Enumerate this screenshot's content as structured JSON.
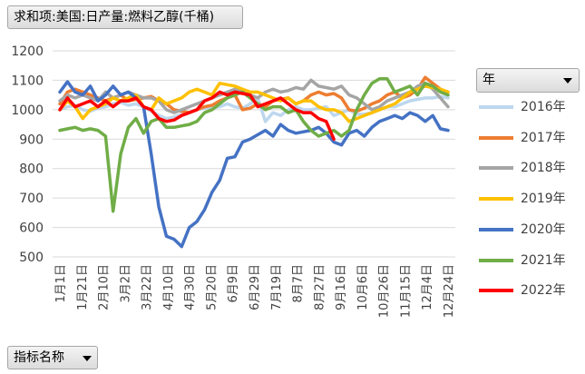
{
  "measure_button": {
    "label": "求和项:美国:日产量:燃料乙醇(千桶)"
  },
  "category_button": {
    "label": "指标名称"
  },
  "legend_header": {
    "label": "年"
  },
  "chart_data": {
    "type": "line",
    "y_ticks": [
      500,
      600,
      700,
      800,
      900,
      1000,
      1100,
      1200
    ],
    "ylim": [
      500,
      1200
    ],
    "x_tick_labels": [
      "1月1日",
      "1月21日",
      "2月10日",
      "3月2日",
      "3月22日",
      "4月10日",
      "4月30日",
      "5月20日",
      "6月9日",
      "6月29日",
      "7月19日",
      "8月7日",
      "8月27日",
      "9月16日",
      "10月6日",
      "10月26日",
      "11月15日",
      "12月4日",
      "12月24日"
    ],
    "n_points": 52,
    "grid": true,
    "legend_position": "right",
    "series": [
      {
        "name": "2016年",
        "color": "#bdd7ee",
        "values": [
          1000,
          1010,
          1015,
          1000,
          995,
          1005,
          1010,
          1020,
          1025,
          1015,
          1020,
          1010,
          995,
          980,
          970,
          975,
          985,
          990,
          1000,
          1005,
          1005,
          1010,
          1020,
          1010,
          1005,
          1020,
          1040,
          960,
          990,
          980,
          1000,
          1010,
          1000,
          1000,
          1005,
          1010,
          980,
          990,
          1000,
          985,
          985,
          990,
          1000,
          1010,
          1010,
          1020,
          1030,
          1035,
          1040,
          1040,
          1045,
          1040
        ]
      },
      {
        "name": "2017年",
        "color": "#ed7d31",
        "values": [
          1020,
          1060,
          1070,
          1060,
          1050,
          1040,
          1030,
          1040,
          1050,
          1030,
          1035,
          1040,
          1045,
          1030,
          1020,
          1000,
          995,
          990,
          1000,
          1010,
          1015,
          1030,
          1040,
          1050,
          1000,
          1005,
          1020,
          1010,
          1030,
          1035,
          1040,
          1020,
          1030,
          1050,
          1060,
          1050,
          1055,
          1040,
          1000,
          995,
          1005,
          1020,
          1030,
          1050,
          1060,
          1040,
          1050,
          1070,
          1110,
          1090,
          1070,
          1060
        ]
      },
      {
        "name": "2018年",
        "color": "#a5a5a5",
        "values": [
          1030,
          1050,
          1040,
          1050,
          1040,
          1030,
          1060,
          1040,
          1050,
          1060,
          1050,
          1040,
          1040,
          1030,
          1000,
          990,
          1000,
          1010,
          1020,
          1030,
          1040,
          1050,
          1060,
          1070,
          1060,
          1050,
          1040,
          1060,
          1070,
          1060,
          1065,
          1075,
          1070,
          1100,
          1080,
          1075,
          1070,
          1080,
          1050,
          1040,
          1020,
          1000,
          1010,
          1030,
          1040,
          1050,
          1060,
          1080,
          1090,
          1070,
          1040,
          1010
        ]
      },
      {
        "name": "2019年",
        "color": "#ffc000",
        "values": [
          1000,
          1030,
          1010,
          970,
          1000,
          1010,
          1020,
          1040,
          1030,
          1040,
          1050,
          1010,
          1000,
          1040,
          1020,
          1030,
          1040,
          1060,
          1070,
          1060,
          1050,
          1090,
          1085,
          1080,
          1070,
          1060,
          1060,
          1050,
          1040,
          1030,
          1040,
          1020,
          1030,
          1030,
          1010,
          1000,
          1000,
          990,
          960,
          970,
          980,
          990,
          1000,
          1010,
          1020,
          1040,
          1060,
          1070,
          1080,
          1075,
          1070,
          1060
        ]
      },
      {
        "name": "2020年",
        "color": "#4472c4",
        "values": [
          1060,
          1095,
          1060,
          1050,
          1080,
          1030,
          1050,
          1080,
          1050,
          1060,
          1040,
          1010,
          850,
          670,
          570,
          560,
          535,
          600,
          620,
          660,
          720,
          760,
          835,
          840,
          890,
          900,
          915,
          930,
          910,
          950,
          930,
          920,
          925,
          930,
          940,
          920,
          890,
          880,
          920,
          930,
          910,
          940,
          960,
          970,
          980,
          970,
          990,
          980,
          960,
          980,
          935,
          930
        ]
      },
      {
        "name": "2021年",
        "color": "#70ad47",
        "values": [
          930,
          935,
          940,
          930,
          935,
          930,
          910,
          655,
          850,
          940,
          970,
          920,
          960,
          970,
          940,
          940,
          945,
          950,
          960,
          990,
          1000,
          1020,
          1040,
          1050,
          1060,
          1040,
          1020,
          1000,
          1010,
          1010,
          990,
          1000,
          960,
          930,
          910,
          920,
          930,
          910,
          930,
          1000,
          1050,
          1090,
          1105,
          1105,
          1060,
          1070,
          1080,
          1050,
          1090,
          1080,
          1060,
          1050
        ]
      },
      {
        "name": "2022年",
        "color": "#ff0000",
        "values": [
          1000,
          1040,
          1010,
          1020,
          1030,
          1010,
          1030,
          1010,
          1030,
          1030,
          1040,
          1010,
          1000,
          970,
          960,
          965,
          980,
          990,
          1000,
          1030,
          1040,
          1060,
          1050,
          1060,
          1055,
          1050,
          1010,
          1020,
          1030,
          1040,
          1020,
          1000,
          990,
          990,
          970,
          960,
          900
        ]
      }
    ]
  }
}
